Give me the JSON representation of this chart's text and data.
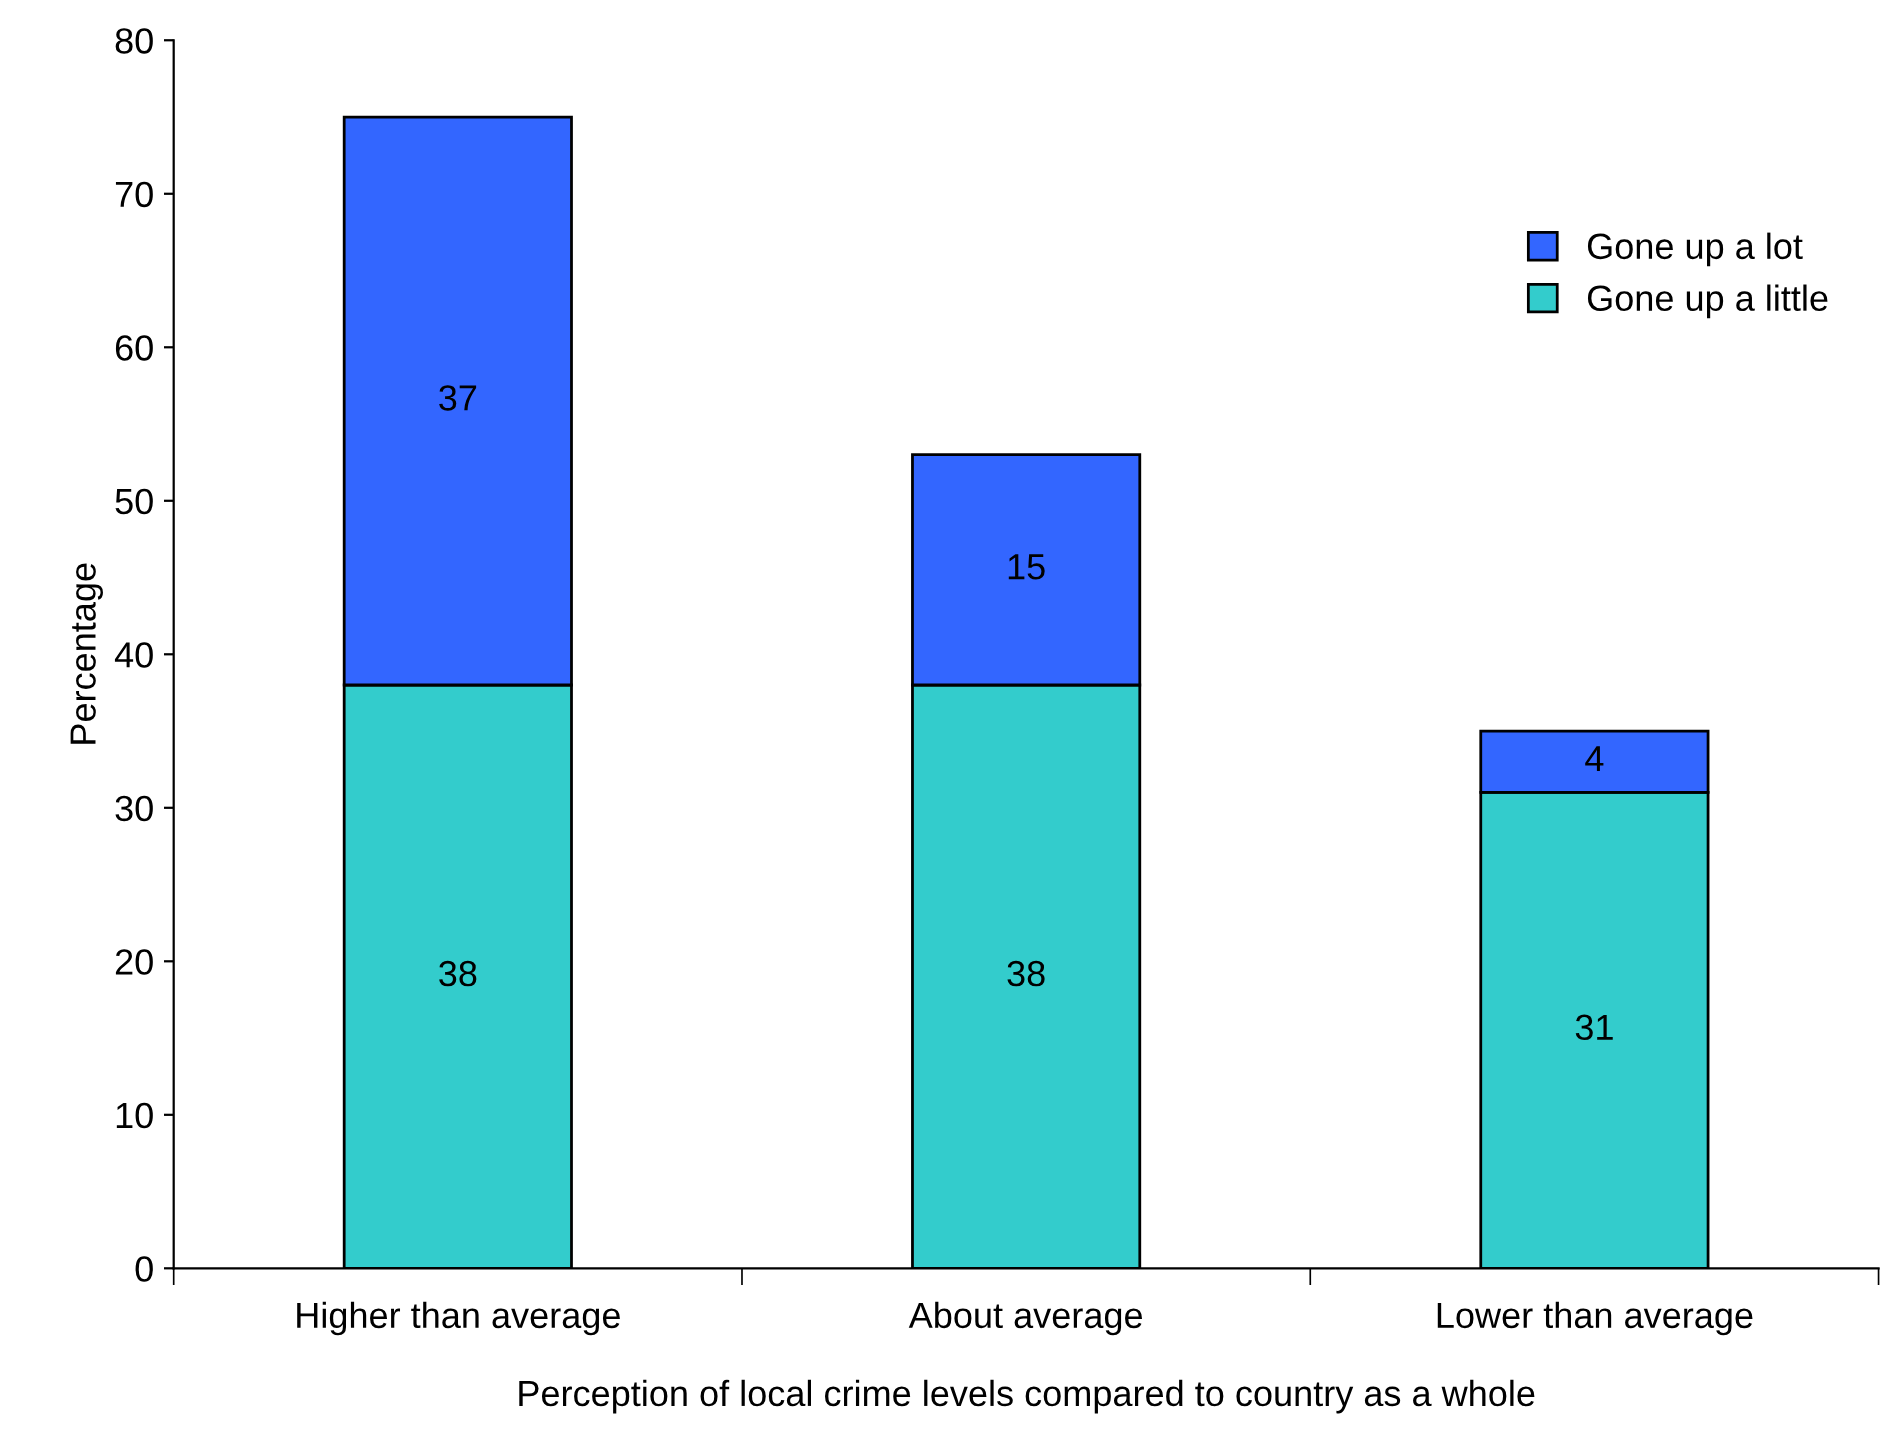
{
  "chart_data": {
    "type": "bar",
    "stacked": true,
    "xlabel": "Perception of local crime levels compared to country as a whole",
    "ylabel": "Percentage",
    "categories": [
      "Higher than average",
      "About average",
      "Lower than average"
    ],
    "series": [
      {
        "name": "Gone up a little",
        "color": "#33cccc",
        "values": [
          38,
          38,
          31
        ]
      },
      {
        "name": "Gone up a lot",
        "color": "#3366ff",
        "values": [
          37,
          15,
          4
        ]
      }
    ],
    "ylim": [
      0,
      80
    ],
    "yticks": [
      0,
      10,
      20,
      30,
      40,
      50,
      60,
      70,
      80
    ],
    "data_labels": true,
    "legend": "top right",
    "grid": false
  }
}
